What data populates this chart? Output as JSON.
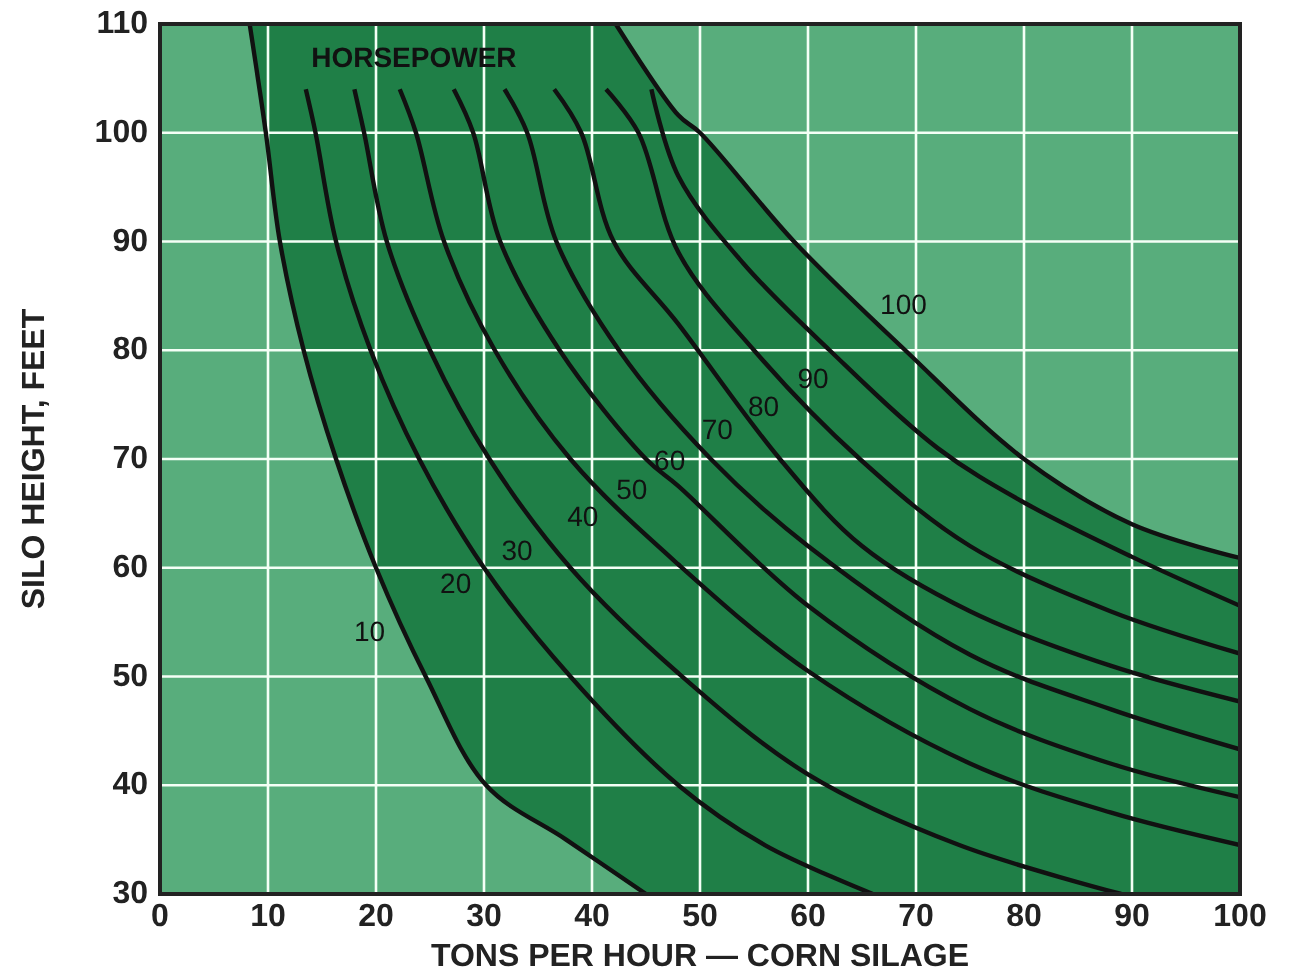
{
  "chart_data": {
    "type": "line",
    "legend_title": "HORSEPOWER",
    "xlabel": "TONS PER HOUR — CORN SILAGE",
    "ylabel": "SILO HEIGHT, FEET",
    "xlim": [
      0,
      100
    ],
    "xticks": [
      0,
      10,
      20,
      30,
      40,
      50,
      60,
      70,
      80,
      90,
      100
    ],
    "ylim": [
      30,
      110
    ],
    "yticks": [
      30,
      40,
      50,
      60,
      70,
      80,
      90,
      100,
      110
    ],
    "grid": true,
    "line_style": "solid",
    "bands": [
      {
        "axis": "x",
        "from": 0,
        "to": 100,
        "color": "#58ad7c"
      }
    ],
    "marker": "none",
    "series": [
      {
        "name": "10",
        "color": "#111111",
        "x": [
          8.3,
          9.8,
          11.1,
          13.3,
          16.3,
          20,
          24.6,
          30.2,
          37.6,
          45
        ],
        "values": [
          110,
          100,
          90,
          80,
          70,
          60,
          50,
          40,
          35,
          30
        ]
      },
      {
        "name": "20",
        "color": "#111111",
        "x": [
          13.5,
          14.4,
          16.3,
          19.5,
          24,
          30,
          38,
          48,
          56,
          66
        ],
        "values": [
          104,
          100,
          90,
          80,
          70,
          60,
          50,
          40,
          34.5,
          30
        ]
      },
      {
        "name": "30",
        "color": "#111111",
        "x": [
          18,
          18.9,
          21,
          25,
          30.5,
          38,
          48,
          60,
          74,
          89
        ],
        "values": [
          104,
          100,
          90,
          80,
          70,
          60,
          50.3,
          41,
          34.5,
          30
        ]
      },
      {
        "name": "40",
        "color": "#111111",
        "x": [
          22.2,
          23.7,
          26.3,
          31,
          38,
          48,
          60,
          75,
          88,
          100
        ],
        "values": [
          104,
          100,
          90,
          80,
          70,
          60.3,
          50.5,
          42,
          37.5,
          34.5
        ]
      },
      {
        "name": "50",
        "color": "#111111",
        "x": [
          27.2,
          29,
          31.5,
          37,
          45,
          48,
          60,
          75,
          88,
          100
        ],
        "values": [
          104,
          100,
          90,
          80,
          70,
          67.5,
          56.5,
          47,
          42,
          38.9
        ]
      },
      {
        "name": "60",
        "color": "#111111",
        "x": [
          31.9,
          34,
          36.7,
          42.5,
          51,
          60,
          75,
          88,
          100
        ],
        "values": [
          104,
          100,
          90,
          80,
          70,
          62,
          52,
          47,
          43.3
        ]
      },
      {
        "name": "70",
        "color": "#111111",
        "x": [
          36.5,
          39,
          42,
          48,
          57.4,
          65,
          75,
          88,
          100
        ],
        "values": [
          104,
          100,
          90,
          82.4,
          70,
          62,
          56,
          51,
          47.7
        ]
      },
      {
        "name": "80",
        "color": "#111111",
        "x": [
          41.3,
          44.3,
          48,
          55,
          64.8,
          75,
          88,
          100
        ],
        "values": [
          104,
          100,
          89,
          80,
          70,
          62,
          56,
          52.1
        ]
      },
      {
        "name": "90",
        "color": "#111111",
        "x": [
          45.5,
          48,
          54,
          62,
          72,
          80,
          90,
          100
        ],
        "values": [
          104,
          96,
          88,
          80,
          71,
          66,
          61,
          56.5
        ]
      },
      {
        "name": "100",
        "color": "#111111",
        "x": [
          42.2,
          48,
          50,
          58.7,
          69,
          80,
          90,
          100
        ],
        "values": [
          110,
          101.6,
          100,
          90,
          80,
          70,
          64,
          60.9
        ]
      }
    ]
  }
}
